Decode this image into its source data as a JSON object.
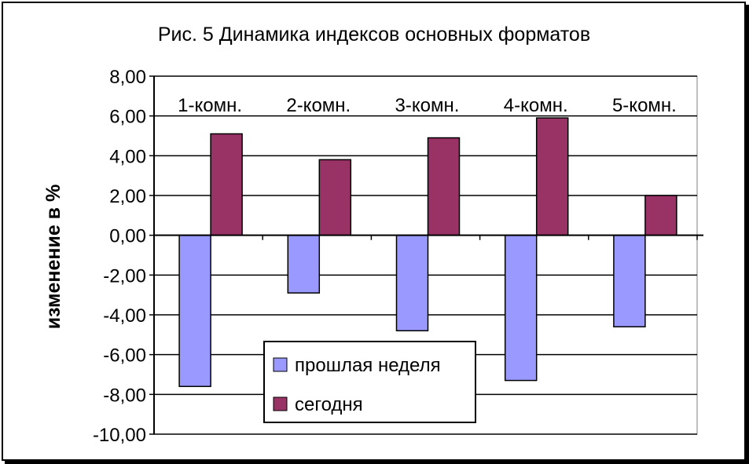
{
  "chart_data": {
    "type": "bar",
    "title": "Рис. 5  Динамика индексов основных форматов",
    "ylabel": "изменение в %",
    "xlabel": "",
    "ylim": [
      -10,
      8
    ],
    "yticks": [
      "8,00",
      "6,00",
      "4,00",
      "2,00",
      "0,00",
      "-2,00",
      "-4,00",
      "-6,00",
      "-8,00",
      "-10,00"
    ],
    "grid": true,
    "legend_position": "bottom-center",
    "categories": [
      "1-комн.",
      "2-комн.",
      "3-комн.",
      "4-комн.",
      "5-комн."
    ],
    "series": [
      {
        "name": "прошлая неделя",
        "color": "#9999ff",
        "values": [
          -7.6,
          -2.9,
          -4.8,
          -7.3,
          -4.6
        ]
      },
      {
        "name": "сегодня",
        "color": "#993366",
        "values": [
          5.1,
          3.8,
          4.9,
          5.9,
          2.0
        ]
      }
    ]
  }
}
